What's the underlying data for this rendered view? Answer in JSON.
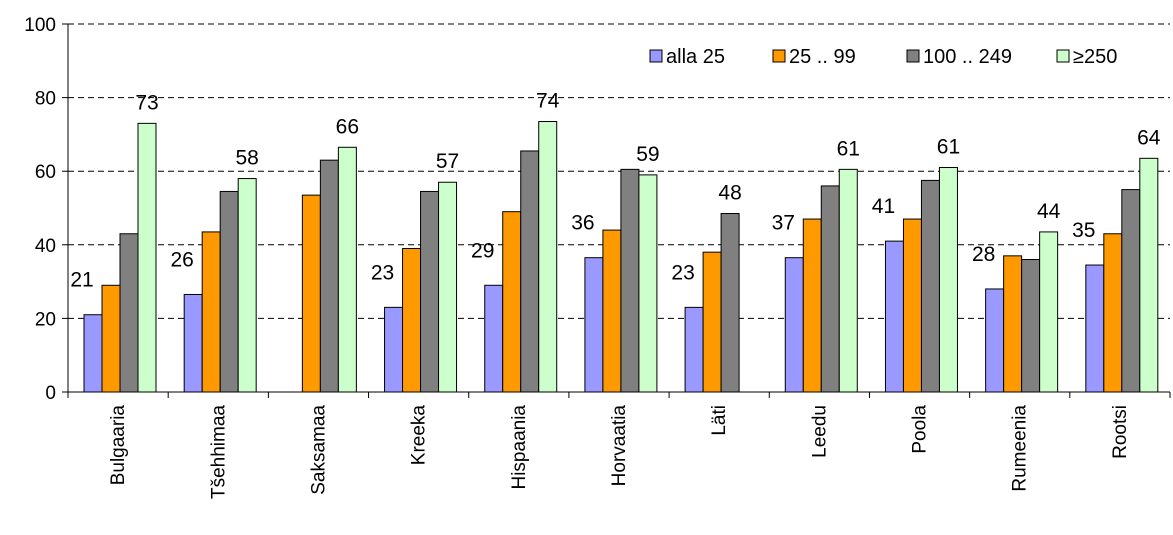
{
  "chart_data": {
    "type": "bar",
    "title": "",
    "xlabel": "",
    "ylabel": "",
    "ylim": [
      0,
      100
    ],
    "yticks": [
      0,
      20,
      40,
      60,
      80,
      100
    ],
    "grid": "horizontal dashed",
    "legend_position": "top-right",
    "categories": [
      "Bulgaaria",
      "Tšehhimaa",
      "Saksamaa",
      "Kreeka",
      "Hispaania",
      "Horvaatia",
      "Läti",
      "Leedu",
      "Poola",
      "Rumeenia",
      "Rootsi"
    ],
    "series": [
      {
        "name": "alla 25",
        "color": "#9999ff",
        "values": [
          21,
          26.5,
          null,
          23,
          29,
          36.5,
          23,
          36.5,
          41,
          28,
          34.5
        ],
        "labels": [
          "21",
          "26",
          "",
          "23",
          "29",
          "36",
          "23",
          "37",
          "41",
          "28",
          "35"
        ]
      },
      {
        "name": "25 .. 99",
        "color": "#ff9900",
        "values": [
          29,
          43.5,
          53.5,
          39,
          49,
          44,
          38,
          47,
          47,
          37,
          43
        ],
        "labels": [
          "",
          "",
          "",
          "",
          "",
          "",
          "",
          "",
          "",
          "",
          ""
        ]
      },
      {
        "name": "100 .. 249",
        "color": "#808080",
        "values": [
          43,
          54.5,
          63,
          54.5,
          65.5,
          60.5,
          48.5,
          56,
          57.5,
          36,
          55
        ],
        "labels": [
          "",
          "",
          "",
          "",
          "",
          "",
          "48",
          "",
          "",
          "",
          ""
        ]
      },
      {
        "name": "≥250",
        "color": "#ccffcc",
        "values": [
          73,
          58,
          66.5,
          57,
          73.5,
          59,
          null,
          60.5,
          61,
          43.5,
          63.5
        ],
        "labels": [
          "73",
          "58",
          "66",
          "57",
          "74",
          "59",
          "",
          "61",
          "61",
          "44",
          "64"
        ]
      }
    ]
  }
}
